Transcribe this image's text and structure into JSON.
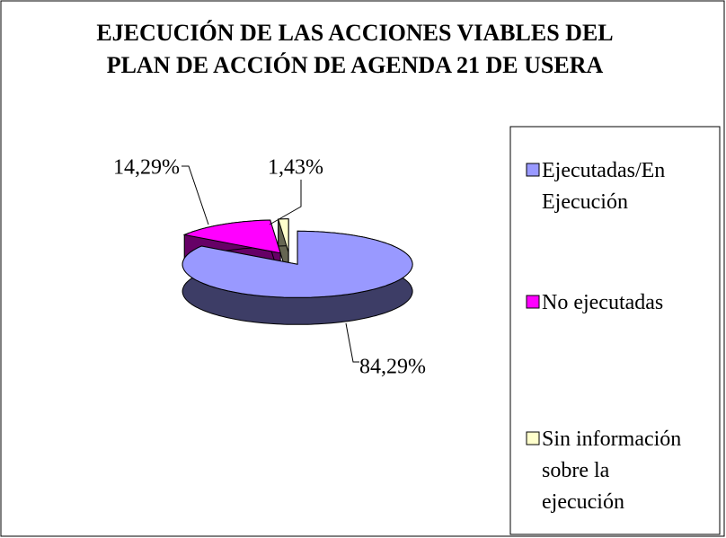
{
  "chart_data": {
    "type": "pie",
    "title": "EJECUCIÓN DE LAS ACCIONES VIABLES DEL PLAN DE ACCIÓN DE AGENDA 21 DE USERA",
    "categories": [
      "Ejecutadas/En Ejecución",
      "No ejecutadas",
      "Sin información sobre la ejecución"
    ],
    "values": [
      84.29,
      14.29,
      1.43
    ],
    "value_labels": [
      "84,29%",
      "14,29%",
      "1,43%"
    ],
    "colors": [
      "#9999ff",
      "#ff00ff",
      "#ffffcc"
    ],
    "legend": "right"
  }
}
